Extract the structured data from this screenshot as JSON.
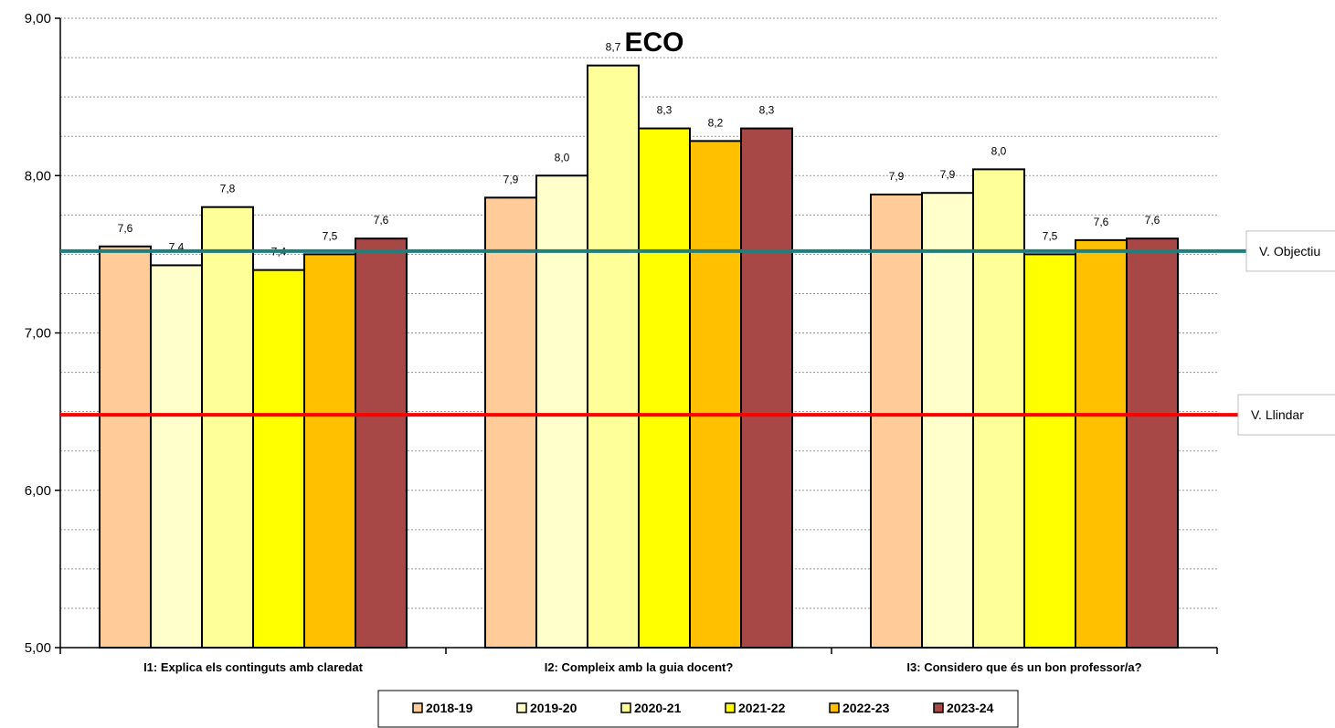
{
  "chart_data": {
    "type": "bar",
    "title": "ECO",
    "xlabel": "",
    "ylabel": "",
    "ylim": [
      5,
      9
    ],
    "yticks": [
      "5,00",
      "6,00",
      "7,00",
      "8,00",
      "9,00"
    ],
    "grid": true,
    "legend_position": "bottom",
    "categories": [
      "I1: Explica els continguts amb claredat",
      "I2: Compleix amb la guia docent?",
      "I3: Considero que és un bon professor/a?"
    ],
    "series": [
      {
        "name": "2018-19",
        "color": "#FFCC99",
        "values": [
          7.55,
          7.86,
          7.88
        ],
        "labels": [
          "7,6",
          "7,9",
          "7,9"
        ]
      },
      {
        "name": "2019-20",
        "color": "#FFFFCC",
        "values": [
          7.43,
          8.0,
          7.89
        ],
        "labels": [
          "7,4",
          "8,0",
          "7,9"
        ]
      },
      {
        "name": "2020-21",
        "color": "#FFFF99",
        "values": [
          7.8,
          8.7,
          8.04
        ],
        "labels": [
          "7,8",
          "8,7",
          "8,0"
        ]
      },
      {
        "name": "2021-22",
        "color": "#FFFF00",
        "values": [
          7.4,
          8.3,
          7.5
        ],
        "labels": [
          "7,4",
          "8,3",
          "7,5"
        ]
      },
      {
        "name": "2022-23",
        "color": "#FFC000",
        "values": [
          7.5,
          8.22,
          7.59
        ],
        "labels": [
          "7,5",
          "8,2",
          "7,6"
        ]
      },
      {
        "name": "2023-24",
        "color": "#A84846",
        "values": [
          7.6,
          8.3,
          7.6
        ],
        "labels": [
          "7,6",
          "8,3",
          "7,6"
        ]
      }
    ],
    "reference_lines": [
      {
        "name": "V. Objectiu",
        "value": 7.52,
        "color": "#1F7F7F"
      },
      {
        "name": "V. Llindar",
        "value": 6.48,
        "color": "#FF0000"
      }
    ]
  }
}
